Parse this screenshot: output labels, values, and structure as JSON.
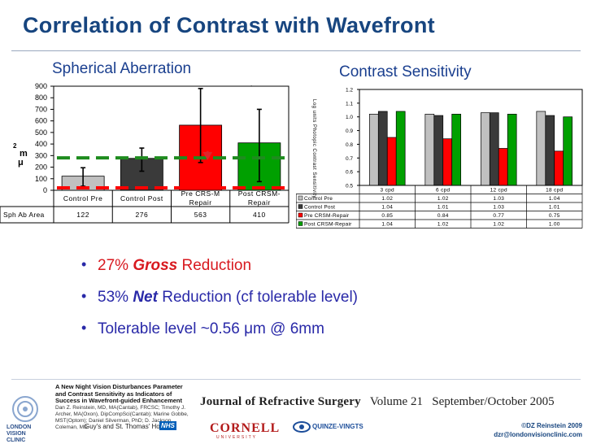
{
  "title": "Correlation of Contrast with Wavefront",
  "left_chart": {
    "heading": "Spherical Aberration",
    "ylabel_lines": [
      "2",
      "m",
      "μ"
    ],
    "row_label": "Sph Ab Area",
    "dot_mark": "."
  },
  "right_chart": {
    "heading": "Contrast Sensitivity",
    "ylabel": "Log units Photopic Contrast Sensitivity"
  },
  "bullets": [
    {
      "pre": "27% ",
      "em": "Gross",
      "post": " Reduction"
    },
    {
      "pre": "53% ",
      "em": "Net",
      "post": " Reduction (cf tolerable level)"
    },
    {
      "pre": "Tolerable level ~0.56 μm @ 6mm",
      "em": "",
      "post": ""
    }
  ],
  "footer": {
    "paper_title": "A New Night Vision Disturbances Parameter and Contrast Sensitivity as Indicators of Success in Wavefront-guided Enhancement",
    "paper_authors": "Dan Z. Reinstein, MD, MA(Cantab), FRCSC; Timothy J. Archer, MA(Oxon), DipCompSci(Cantab); Marine Gobbe, MST(Optom); Daniel Silverman, PhD; D. Jackson Coleman, MD",
    "journal_name": "Journal of Refractive Surgery",
    "journal_volume": "Volume 21",
    "journal_date": "September/October 2005",
    "lvc_lines": [
      "LONDON",
      "VISION",
      "CLINIC"
    ],
    "guys": "Guy's and St. Thomas' Hospital",
    "nhs": "NHS",
    "cornell": "CORNELL",
    "cornell_sub": "UNIVERSITY",
    "qv": "QUINZE-VINGTS",
    "copyright": "©DZ Reinstein 2009",
    "email": "dzr@londonvisionclinic.com"
  },
  "colors": {
    "title": "#17457f",
    "heading": "#1a3f8f",
    "bullet": "#2929a8",
    "bullet_first": "#d8191f",
    "gray": "#c0c0c0",
    "darkgray": "#3a3a3a",
    "red": "#ff0000",
    "green": "#00a000",
    "dash": "#1e8c1e"
  },
  "chart_data": [
    {
      "type": "bar",
      "title": "Spherical Aberration",
      "categories": [
        "Control Pre",
        "Control Post",
        "Pre CRS-M Repair",
        "Post CRSM-Repair"
      ],
      "category_lines": [
        [
          "Control Pre"
        ],
        [
          "Control Post"
        ],
        [
          "Pre CRS-M",
          "Repair"
        ],
        [
          "Post CRSM-",
          "Repair"
        ]
      ],
      "values": [
        122,
        276,
        563,
        410
      ],
      "value_labels": [
        "122",
        "276",
        "563",
        "410"
      ],
      "bar_colors": [
        "#c0c0c0",
        "#3a3a3a",
        "#ff0000",
        "#00a000"
      ],
      "error_high": [
        195,
        365,
        880,
        700
      ],
      "error_low": [
        35,
        165,
        240,
        75
      ],
      "tolerable_level": 280,
      "ylim": [
        0,
        900
      ],
      "yticks": [
        "0",
        "100",
        "200",
        "300",
        "400",
        "500",
        "600",
        "700",
        "800",
        "900"
      ],
      "table_row_label": "Sph Ab Area",
      "arrow": {
        "from": 340,
        "to": 275
      }
    },
    {
      "type": "bar",
      "title": "Contrast Sensitivity",
      "categories": [
        "3 cpd",
        "6 cpd",
        "12 cpd",
        "18 cpd"
      ],
      "series": [
        {
          "name": "Control Pre",
          "color": "#c0c0c0",
          "values": [
            1.02,
            1.02,
            1.03,
            1.04
          ],
          "labels": [
            "1.02",
            "1.02",
            "1.03",
            "1.04"
          ]
        },
        {
          "name": "Control Post",
          "color": "#3a3a3a",
          "values": [
            1.04,
            1.01,
            1.03,
            1.01
          ],
          "labels": [
            "1.04",
            "1.01",
            "1.03",
            "1.01"
          ]
        },
        {
          "name": "Pre CRSM-Repair",
          "color": "#ff0000",
          "values": [
            0.85,
            0.84,
            0.77,
            0.75
          ],
          "labels": [
            "0.85",
            "0.84",
            "0.77",
            "0.75"
          ]
        },
        {
          "name": "Post CRSM-Repair",
          "color": "#00a000",
          "values": [
            1.04,
            1.02,
            1.02,
            1.0
          ],
          "labels": [
            "1.04",
            "1.02",
            "1.02",
            "1.00"
          ]
        }
      ],
      "ylim": [
        0.5,
        1.2
      ],
      "yticks": [
        "0.5",
        "0.6",
        "0.7",
        "0.8",
        "0.9",
        "1.0",
        "1.1",
        "1.2"
      ]
    }
  ]
}
